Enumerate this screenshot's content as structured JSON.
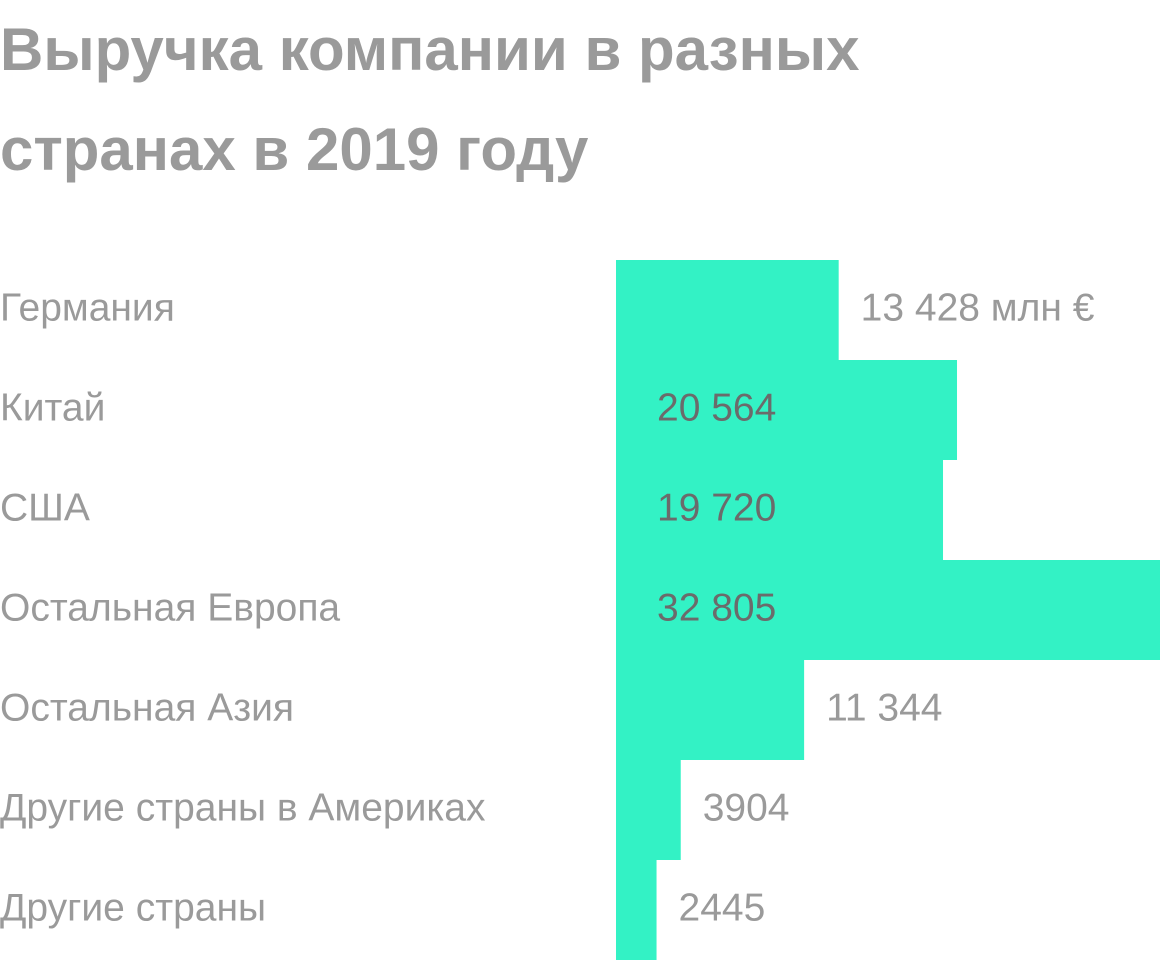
{
  "chart_data": {
    "type": "bar",
    "orientation": "horizontal",
    "title": [
      "Выручка компании в разных",
      "странах в 2019 году"
    ],
    "categories": [
      "Германия",
      "Китай",
      "США",
      "Остальная Европа",
      "Остальная Азия",
      "Другие страны в Америках",
      "Другие страны"
    ],
    "values": [
      13428,
      20564,
      19720,
      32805,
      11344,
      3904,
      2445
    ],
    "value_labels": [
      "13 428 млн €",
      "20 564",
      "19 720",
      "32 805",
      "11 344",
      "3904",
      "2445"
    ],
    "color": "#33f2c5"
  }
}
